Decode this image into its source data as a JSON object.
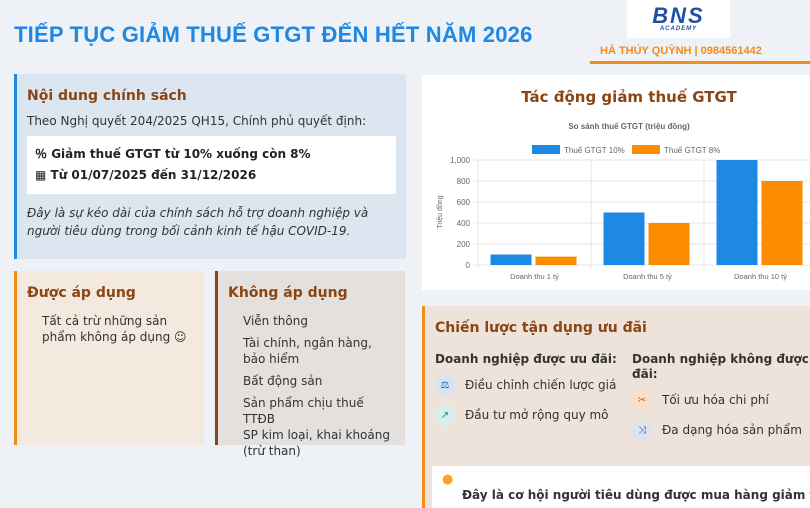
{
  "header": {
    "title": "TIẾP TỤC GIẢM THUẾ GTGT ĐẾN HẾT NĂM 2026",
    "logo_text": "BNS",
    "logo_sub": "ACADEMY",
    "author": "HÀ THÚY QUỲNH | 0984561442"
  },
  "policy": {
    "heading": "Nội dung chính sách",
    "intro": "Theo Nghị quyết 204/2025 QH15, Chính phủ quyết định:",
    "point1": "Giảm thuế GTGT từ 10% xuống còn 8%",
    "point2": "Từ 01/07/2025 đến 31/12/2026",
    "note": "Đây là sự kéo dài của chính sách hỗ trợ doanh nghiệp và người tiêu dùng trong bối cảnh kinh tế hậu COVID-19."
  },
  "apply": {
    "heading": "Được áp dụng",
    "items": [
      "Tất cả trừ những sản phẩm không áp dụng ☺"
    ]
  },
  "noapply": {
    "heading": "Không áp dụng",
    "items": [
      "Viễn thông",
      "Tài chính, ngân hàng, bảo hiểm",
      "Bất động sản",
      "Sản phẩm chịu thuế TTĐB",
      "SP kim loại, khai khoáng (trừ than)"
    ]
  },
  "chart_section": {
    "heading": "Tác động giảm thuế GTGT"
  },
  "chart_data": {
    "type": "bar",
    "title": "So sánh thuế GTGT (triệu đồng)",
    "ylabel": "Triệu đồng",
    "xlabel": "",
    "categories": [
      "Doanh thu 1 tỷ",
      "Doanh thu 5 tỷ",
      "Doanh thu 10 tỷ"
    ],
    "series": [
      {
        "name": "Thuế GTGT 10%",
        "values": [
          100,
          500,
          1000
        ],
        "color": "#1e88e5"
      },
      {
        "name": "Thuế GTGT 8%",
        "values": [
          80,
          400,
          800
        ],
        "color": "#fb8c00"
      }
    ],
    "ylim": [
      0,
      1000
    ],
    "yticks": [
      "0",
      "200",
      "400",
      "600",
      "800",
      "1,000"
    ],
    "legend": "top",
    "grid": true
  },
  "strategy": {
    "heading": "Chiến lược tận dụng ưu đãi",
    "col1": {
      "title": "Doanh nghiệp được ưu đãi:",
      "items": [
        {
          "icon": "balance-scale-icon",
          "label": "Điều chỉnh chiến lược giá"
        },
        {
          "icon": "chart-line-icon",
          "label": "Đầu tư mở rộng quy mô"
        }
      ]
    },
    "col2": {
      "title": "Doanh nghiệp không được ưu đãi:",
      "items": [
        {
          "icon": "scissors-icon",
          "label": "Tối ưu hóa chi phí"
        },
        {
          "icon": "shuffle-icon",
          "label": "Đa dạng hóa sản phẩm"
        }
      ]
    },
    "tip": "Đây là cơ hội người tiêu dùng được mua hàng giảm thuế"
  }
}
